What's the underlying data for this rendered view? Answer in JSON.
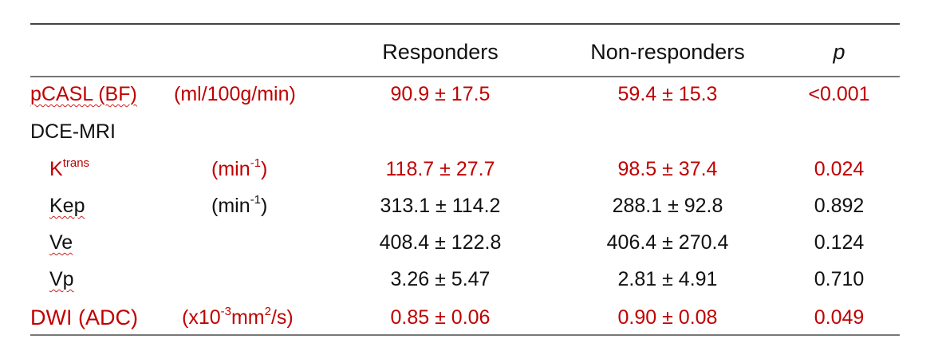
{
  "header": {
    "columns": [
      "Responders",
      "Non-responders",
      "p"
    ]
  },
  "rows": [
    {
      "label": [
        {
          "text": "pCASL (BF)"
        }
      ],
      "unit": [
        {
          "text": "(ml/100g/min)"
        }
      ],
      "responders": "90.9 ± 17.5",
      "non_responders": "59.4 ± 15.3",
      "p": "<0.001",
      "highlight": true
    },
    {
      "label": [
        {
          "text": "DCE-MRI"
        }
      ],
      "highlight": false
    },
    {
      "label": [
        {
          "text": "K"
        },
        {
          "sup": "trans"
        }
      ],
      "unit": [
        {
          "text": "(min"
        },
        {
          "sup": "-1"
        },
        {
          "text": ")"
        }
      ],
      "responders": "118.7 ± 27.7",
      "non_responders": "98.5 ± 37.4",
      "p": "0.024",
      "highlight": true
    },
    {
      "label": [
        {
          "text": "Kep"
        }
      ],
      "unit": [
        {
          "text": "(min"
        },
        {
          "sup": "-1"
        },
        {
          "text": ")"
        }
      ],
      "responders": "313.1 ± 114.2",
      "non_responders": "288.1 ± 92.8",
      "p": "0.892",
      "highlight": false
    },
    {
      "label": [
        {
          "text": "Ve"
        }
      ],
      "responders": "408.4 ± 122.8",
      "non_responders": "406.4 ± 270.4",
      "p": "0.124",
      "highlight": false
    },
    {
      "label": [
        {
          "text": "Vp"
        }
      ],
      "responders": "3.26 ± 5.47",
      "non_responders": "2.81 ± 4.91",
      "p": "0.710",
      "highlight": false
    },
    {
      "label": [
        {
          "text": "DWI (ADC)"
        }
      ],
      "unit": [
        {
          "text": "(x10"
        },
        {
          "sup": "-3"
        },
        {
          "text": "mm"
        },
        {
          "sup": "2"
        },
        {
          "text": "/s)"
        }
      ],
      "responders": "0.85 ± 0.06",
      "non_responders": "0.90 ± 0.08",
      "p": "0.049",
      "highlight": true
    }
  ]
}
